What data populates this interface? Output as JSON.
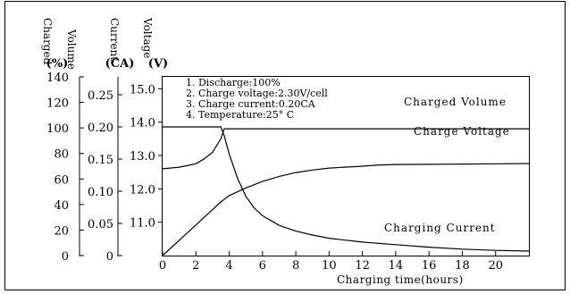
{
  "chart_data": {
    "type": "line",
    "axes": {
      "charged": {
        "title": "Charged Volume",
        "unit": "(%)",
        "ticks": [
          "0",
          "20",
          "40",
          "60",
          "80",
          "100",
          "120",
          "140"
        ],
        "ylim": [
          0,
          140
        ]
      },
      "current": {
        "title": "Current",
        "unit": "(CA)",
        "ticks": [
          "0",
          "0.05",
          "0.10",
          "0.15",
          "0.20",
          "0.25"
        ],
        "ylim": [
          0,
          0.3
        ]
      },
      "voltage": {
        "title": "Voltage",
        "unit": "(V)",
        "ticks": [
          "11.0",
          "12.0",
          "13.0",
          "14.0",
          "15.0"
        ],
        "ylim": [
          10.0,
          16.0
        ]
      },
      "x": {
        "label": "Charging time(hours)",
        "ticks": [
          "0",
          "2",
          "4",
          "6",
          "8",
          "10",
          "12",
          "14",
          "16",
          "18",
          "20"
        ],
        "xlim": [
          0,
          22
        ]
      }
    },
    "notes": [
      "1. Discharge:100%",
      "2. Charge voltage:2.30V/cell",
      "3. Charge current:0.20CA",
      "4. Temperature:25° C"
    ],
    "series": [
      {
        "name": "Charged Volume",
        "axis": "charged",
        "points": [
          [
            0,
            0
          ],
          [
            1,
            12
          ],
          [
            2,
            24
          ],
          [
            3,
            36
          ],
          [
            3.5,
            42
          ],
          [
            4,
            47
          ],
          [
            5,
            53
          ],
          [
            6,
            58
          ],
          [
            7,
            62
          ],
          [
            8,
            65
          ],
          [
            9,
            67
          ],
          [
            10,
            68.5
          ],
          [
            12,
            70
          ],
          [
            13,
            71
          ],
          [
            14,
            71.3
          ],
          [
            16,
            71.5
          ],
          [
            18,
            71.7
          ],
          [
            20,
            71.9
          ],
          [
            22,
            72.1
          ]
        ]
      },
      {
        "name": "Charge Voltage",
        "axis": "voltage",
        "points": [
          [
            0,
            12.6
          ],
          [
            1,
            12.65
          ],
          [
            2,
            12.75
          ],
          [
            2.5,
            12.9
          ],
          [
            3,
            13.1
          ],
          [
            3.5,
            13.5
          ],
          [
            3.7,
            13.8
          ],
          [
            5,
            13.8
          ],
          [
            10,
            13.8
          ],
          [
            15,
            13.8
          ],
          [
            22,
            13.8
          ]
        ]
      },
      {
        "name": "Charging Current",
        "axis": "current",
        "points": [
          [
            0,
            0.2
          ],
          [
            3.5,
            0.2
          ],
          [
            3.7,
            0.186
          ],
          [
            4,
            0.158
          ],
          [
            4.5,
            0.12
          ],
          [
            5,
            0.092
          ],
          [
            5.5,
            0.074
          ],
          [
            6,
            0.062
          ],
          [
            7,
            0.047
          ],
          [
            8,
            0.038
          ],
          [
            9,
            0.032
          ],
          [
            10,
            0.027
          ],
          [
            12,
            0.021
          ],
          [
            14,
            0.017
          ],
          [
            16,
            0.013
          ],
          [
            18,
            0.01
          ],
          [
            20,
            0.008
          ],
          [
            22,
            0.007
          ]
        ]
      }
    ]
  }
}
